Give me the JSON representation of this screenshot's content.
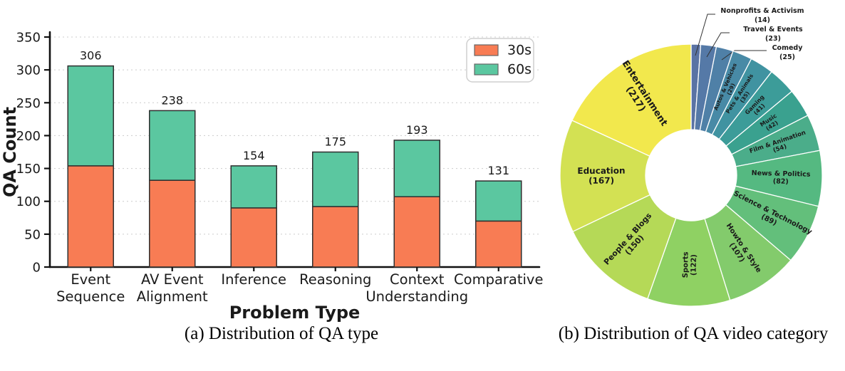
{
  "figure": {
    "caption_a": "(a) Distribution of QA type",
    "caption_b": "(b) Distribution of QA video category"
  },
  "chart_data": [
    {
      "type": "bar",
      "stacked": true,
      "xlabel": "Problem Type",
      "ylabel": "QA Count",
      "ylim": [
        0,
        350
      ],
      "yticks": [
        0,
        50,
        100,
        150,
        200,
        250,
        300,
        350
      ],
      "grid": "horizontal dashed",
      "legend_position": "upper right",
      "categories": [
        "Event Sequence",
        "AV Event Alignment",
        "Inference",
        "Reasoning",
        "Context Understanding",
        "Comparative"
      ],
      "category_lines": [
        [
          "Event",
          "Sequence"
        ],
        [
          "AV Event",
          "Alignment"
        ],
        [
          "Inference"
        ],
        [
          "Reasoning"
        ],
        [
          "Context",
          "Understanding"
        ],
        [
          "Comparative"
        ]
      ],
      "totals": [
        306,
        238,
        154,
        175,
        193,
        131
      ],
      "series": [
        {
          "name": "30s",
          "color": "#f87c54",
          "values": [
            154,
            132,
            90,
            92,
            107,
            70
          ]
        },
        {
          "name": "60s",
          "color": "#5bc7a0",
          "values": [
            152,
            106,
            64,
            83,
            86,
            61
          ]
        }
      ]
    },
    {
      "type": "pie",
      "subtype": "donut",
      "start_angle": "12 o'clock, clockwise",
      "total": 1197,
      "slices": [
        {
          "label": "Nonprofits & Activism",
          "value": 14,
          "color": "#5a73a4",
          "external": true
        },
        {
          "label": "Travel & Events",
          "value": 23,
          "color": "#5579a7",
          "external": true
        },
        {
          "label": "Comedy",
          "value": 25,
          "color": "#4f80a7",
          "external": true
        },
        {
          "label": "Autos & Vehicles",
          "value": 29,
          "color": "#488aa6",
          "external": false
        },
        {
          "label": "Pets & Animals",
          "value": 35,
          "color": "#4093a1",
          "external": false
        },
        {
          "label": "Gaming",
          "value": 41,
          "color": "#3c9c99",
          "external": false
        },
        {
          "label": "Music",
          "value": 42,
          "color": "#3aa18f",
          "external": false
        },
        {
          "label": "Film & Animation",
          "value": 54,
          "color": "#4bad8a",
          "external": false
        },
        {
          "label": "News & Politics",
          "value": 82,
          "color": "#55b981",
          "external": false
        },
        {
          "label": "Science & Technology",
          "value": 89,
          "color": "#63bf7b",
          "external": false
        },
        {
          "label": "Howto & Style",
          "value": 107,
          "color": "#83cb6c",
          "external": false
        },
        {
          "label": "Sports",
          "value": 122,
          "color": "#8fd163",
          "external": false
        },
        {
          "label": "People & Blogs",
          "value": 150,
          "color": "#b5d957",
          "external": false
        },
        {
          "label": "Education",
          "value": 167,
          "color": "#d3e153",
          "external": false
        },
        {
          "label": "Entertainment",
          "value": 217,
          "color": "#f2e84d",
          "external": false
        }
      ]
    }
  ]
}
